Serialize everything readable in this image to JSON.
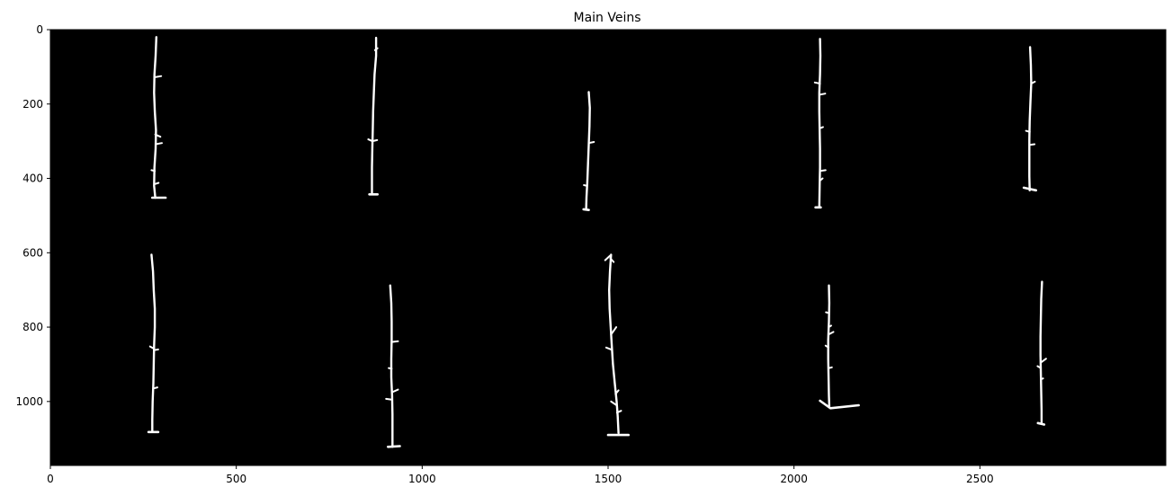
{
  "chart_data": {
    "type": "image",
    "title": "Main Veins",
    "xlabel": "",
    "ylabel": "",
    "xlim": [
      0,
      3000
    ],
    "ylim": [
      1172,
      0
    ],
    "x_ticks": [
      {
        "value": 0,
        "label": "0"
      },
      {
        "value": 500,
        "label": "500"
      },
      {
        "value": 1000,
        "label": "1000"
      },
      {
        "value": 1500,
        "label": "1500"
      },
      {
        "value": 2000,
        "label": "2000"
      },
      {
        "value": 2500,
        "label": "2500"
      }
    ],
    "y_ticks": [
      {
        "value": 0,
        "label": "0"
      },
      {
        "value": 200,
        "label": "200"
      },
      {
        "value": 400,
        "label": "400"
      },
      {
        "value": 600,
        "label": "600"
      },
      {
        "value": 800,
        "label": "800"
      },
      {
        "value": 1000,
        "label": "1000"
      }
    ],
    "grid": false,
    "colors": {
      "background": "#000000",
      "vein": "#ffffff"
    },
    "veins": [
      {
        "path": [
          [
            285,
            20
          ],
          [
            283,
            70
          ],
          [
            280,
            120
          ],
          [
            279,
            170
          ],
          [
            281,
            220
          ],
          [
            284,
            270
          ],
          [
            283,
            320
          ],
          [
            280,
            370
          ],
          [
            279,
            420
          ],
          [
            282,
            452
          ]
        ],
        "branches": [
          [
            [
              280,
              128
            ],
            [
              298,
              125
            ]
          ],
          [
            [
              283,
              308
            ],
            [
              300,
              305
            ]
          ],
          [
            [
              282,
              282
            ],
            [
              296,
              288
            ]
          ],
          [
            [
              281,
              380
            ],
            [
              272,
              378
            ]
          ],
          [
            [
              282,
              415
            ],
            [
              291,
              412
            ]
          ]
        ],
        "base": [
          [
            274,
            452
          ],
          [
            310,
            452
          ]
        ]
      },
      {
        "path": [
          [
            876,
            22
          ],
          [
            876,
            70
          ],
          [
            872,
            120
          ],
          [
            870,
            170
          ],
          [
            868,
            220
          ],
          [
            867,
            270
          ],
          [
            866,
            320
          ],
          [
            865,
            370
          ],
          [
            865,
            420
          ],
          [
            865,
            443
          ]
        ],
        "branches": [
          [
            [
              873,
              55
            ],
            [
              880,
              50
            ]
          ],
          [
            [
              866,
              300
            ],
            [
              855,
              295
            ]
          ],
          [
            [
              866,
              300
            ],
            [
              879,
              297
            ]
          ]
        ],
        "base": [
          [
            858,
            443
          ],
          [
            880,
            443
          ]
        ]
      },
      {
        "path": [
          [
            1448,
            168
          ],
          [
            1451,
            210
          ],
          [
            1450,
            260
          ],
          [
            1448,
            310
          ],
          [
            1446,
            360
          ],
          [
            1444,
            410
          ],
          [
            1442,
            450
          ],
          [
            1441,
            483
          ]
        ],
        "branches": [
          [
            [
              1448,
              305
            ],
            [
              1462,
              302
            ]
          ],
          [
            [
              1443,
              420
            ],
            [
              1435,
              418
            ]
          ]
        ],
        "base": [
          [
            1434,
            483
          ],
          [
            1448,
            485
          ]
        ]
      },
      {
        "path": [
          [
            2070,
            25
          ],
          [
            2071,
            70
          ],
          [
            2070,
            120
          ],
          [
            2068,
            170
          ],
          [
            2068,
            220
          ],
          [
            2069,
            270
          ],
          [
            2070,
            320
          ],
          [
            2070,
            370
          ],
          [
            2069,
            420
          ],
          [
            2068,
            478
          ]
        ],
        "branches": [
          [
            [
              2070,
              145
            ],
            [
              2056,
              142
            ]
          ],
          [
            [
              2069,
              175
            ],
            [
              2084,
              172
            ]
          ],
          [
            [
              2070,
              265
            ],
            [
              2078,
              262
            ]
          ],
          [
            [
              2070,
              380
            ],
            [
              2085,
              378
            ]
          ],
          [
            [
              2071,
              405
            ],
            [
              2077,
              400
            ]
          ]
        ],
        "base": [
          [
            2058,
            478
          ],
          [
            2072,
            478
          ]
        ]
      },
      {
        "path": [
          [
            2635,
            47
          ],
          [
            2637,
            95
          ],
          [
            2638,
            145
          ],
          [
            2636,
            195
          ],
          [
            2634,
            245
          ],
          [
            2633,
            295
          ],
          [
            2633,
            345
          ],
          [
            2633,
            395
          ],
          [
            2634,
            432
          ]
        ],
        "branches": [
          [
            [
              2638,
              145
            ],
            [
              2648,
              140
            ]
          ],
          [
            [
              2634,
              275
            ],
            [
              2624,
              272
            ]
          ],
          [
            [
              2634,
              310
            ],
            [
              2647,
              308
            ]
          ]
        ],
        "base": [
          [
            2618,
            425
          ],
          [
            2651,
            432
          ]
        ]
      },
      {
        "path": [
          [
            272,
            605
          ],
          [
            276,
            650
          ],
          [
            278,
            700
          ],
          [
            281,
            750
          ],
          [
            281,
            800
          ],
          [
            279,
            850
          ],
          [
            278,
            900
          ],
          [
            277,
            950
          ],
          [
            275,
            1000
          ],
          [
            274,
            1050
          ],
          [
            274,
            1082
          ]
        ],
        "branches": [
          [
            [
              279,
              858
            ],
            [
              268,
              852
            ]
          ],
          [
            [
              279,
              862
            ],
            [
              290,
              860
            ]
          ],
          [
            [
              277,
              965
            ],
            [
              288,
              962
            ]
          ]
        ],
        "base": [
          [
            264,
            1082
          ],
          [
            290,
            1082
          ]
        ]
      },
      {
        "path": [
          [
            914,
            688
          ],
          [
            917,
            735
          ],
          [
            918,
            785
          ],
          [
            918,
            835
          ],
          [
            917,
            885
          ],
          [
            917,
            935
          ],
          [
            919,
            985
          ],
          [
            920,
            1035
          ],
          [
            920,
            1085
          ],
          [
            920,
            1122
          ]
        ],
        "branches": [
          [
            [
              918,
              840
            ],
            [
              935,
              838
            ]
          ],
          [
            [
              918,
              912
            ],
            [
              910,
              910
            ]
          ],
          [
            [
              918,
              995
            ],
            [
              903,
              993
            ]
          ],
          [
            [
              919,
              975
            ],
            [
              935,
              968
            ]
          ]
        ],
        "base": [
          [
            908,
            1122
          ],
          [
            940,
            1120
          ]
        ]
      },
      {
        "path": [
          [
            1508,
            605
          ],
          [
            1505,
            650
          ],
          [
            1503,
            700
          ],
          [
            1504,
            750
          ],
          [
            1507,
            800
          ],
          [
            1510,
            850
          ],
          [
            1513,
            900
          ],
          [
            1518,
            950
          ],
          [
            1523,
            1000
          ],
          [
            1526,
            1040
          ],
          [
            1528,
            1085
          ]
        ],
        "branches": [
          [
            [
              1505,
              608
            ],
            [
              1492,
              620
            ]
          ],
          [
            [
              1506,
              615
            ],
            [
              1515,
              625
            ]
          ],
          [
            [
              1508,
              820
            ],
            [
              1522,
              800
            ]
          ],
          [
            [
              1508,
              860
            ],
            [
              1495,
              855
            ]
          ],
          [
            [
              1520,
              980
            ],
            [
              1528,
              970
            ]
          ],
          [
            [
              1523,
              1010
            ],
            [
              1508,
              1000
            ]
          ],
          [
            [
              1524,
              1030
            ],
            [
              1535,
              1025
            ]
          ]
        ],
        "base": [
          [
            1500,
            1090
          ],
          [
            1555,
            1090
          ]
        ]
      },
      {
        "path": [
          [
            2094,
            688
          ],
          [
            2095,
            735
          ],
          [
            2094,
            785
          ],
          [
            2092,
            835
          ],
          [
            2092,
            885
          ],
          [
            2093,
            935
          ],
          [
            2094,
            985
          ],
          [
            2095,
            1012
          ]
        ],
        "branches": [
          [
            [
              2093,
              762
            ],
            [
              2086,
              760
            ]
          ],
          [
            [
              2093,
              800
            ],
            [
              2100,
              796
            ]
          ],
          [
            [
              2093,
              820
            ],
            [
              2106,
              813
            ]
          ],
          [
            [
              2093,
              855
            ],
            [
              2085,
              850
            ]
          ],
          [
            [
              2094,
              910
            ],
            [
              2102,
              908
            ]
          ]
        ],
        "base": [
          [
            2070,
            998
          ],
          [
            2098,
            1018
          ],
          [
            2174,
            1010
          ]
        ]
      },
      {
        "path": [
          [
            2667,
            678
          ],
          [
            2665,
            725
          ],
          [
            2664,
            775
          ],
          [
            2663,
            825
          ],
          [
            2663,
            875
          ],
          [
            2664,
            925
          ],
          [
            2665,
            975
          ],
          [
            2666,
            1025
          ],
          [
            2666,
            1058
          ]
        ],
        "branches": [
          [
            [
              2664,
              895
            ],
            [
              2678,
              885
            ]
          ],
          [
            [
              2664,
              910
            ],
            [
              2655,
              905
            ]
          ],
          [
            [
              2665,
              940
            ],
            [
              2670,
              938
            ]
          ]
        ],
        "base": [
          [
            2656,
            1058
          ],
          [
            2673,
            1062
          ]
        ]
      }
    ]
  }
}
